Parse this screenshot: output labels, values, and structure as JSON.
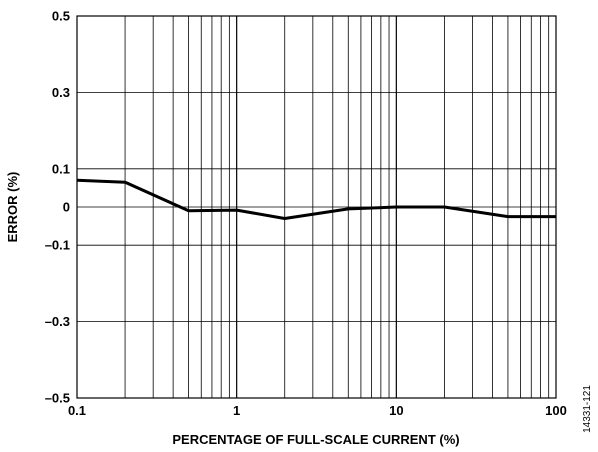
{
  "chart_data": {
    "type": "line",
    "title": "",
    "xlabel": "PERCENTAGE OF FULL-SCALE CURRENT (%)",
    "ylabel": "ERROR (%)",
    "xscale": "log",
    "xlim": [
      0.1,
      100
    ],
    "ylim": [
      -0.5,
      0.5
    ],
    "grid": true,
    "legend": "none",
    "x_tick_labels": [
      "0.1",
      "1",
      "10",
      "100"
    ],
    "y_ticks": [
      0.5,
      0.3,
      0.1,
      0,
      -0.1,
      -0.3,
      -0.5
    ],
    "y_tick_labels": [
      "0.5",
      "0.3",
      "0.1",
      "0",
      "–0.1",
      "–0.3",
      "–0.5"
    ],
    "series": [
      {
        "x": [
          0.1,
          0.2,
          0.5,
          1,
          2,
          5,
          10,
          20,
          50,
          100
        ],
        "y": [
          0.07,
          0.065,
          -0.01,
          -0.008,
          -0.03,
          -0.005,
          0.0,
          0.0,
          -0.025,
          -0.025
        ]
      }
    ],
    "line_color": "#000000"
  },
  "figure_id": "14331-121"
}
